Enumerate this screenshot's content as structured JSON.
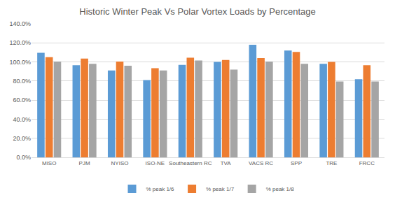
{
  "chart_data": {
    "type": "bar",
    "title": "Historic Winter Peak Vs Polar Vortex Loads by Percentage",
    "categories": [
      "MISO",
      "PJM",
      "NYISO",
      "ISO-NE",
      "Southeastern RC",
      "TVA",
      "VACS RC",
      "SPP",
      "TRE",
      "FRCC"
    ],
    "series": [
      {
        "name": "% peak 1/6",
        "color": "#5b9bd5",
        "values": [
          109.5,
          96.5,
          91,
          81,
          97,
          100,
          118,
          112,
          98,
          82
        ]
      },
      {
        "name": "% peak 1/7",
        "color": "#ed7d31",
        "values": [
          105,
          103.5,
          100.5,
          93.5,
          104.5,
          102,
          104,
          110.5,
          100,
          96.5
        ]
      },
      {
        "name": "% peak 1/8",
        "color": "#a5a5a5",
        "values": [
          100.5,
          98,
          96,
          91,
          101.5,
          92,
          100.5,
          98,
          79.5,
          79.5
        ]
      }
    ],
    "ylim": [
      0,
      140
    ],
    "yticks": [
      {
        "value": 0,
        "label": "0.0%"
      },
      {
        "value": 20,
        "label": "20.0%"
      },
      {
        "value": 40,
        "label": "40.0%"
      },
      {
        "value": 60,
        "label": "60.0%"
      },
      {
        "value": 80,
        "label": "80.0%"
      },
      {
        "value": 100,
        "label": "100.0%"
      },
      {
        "value": 120,
        "label": "120.0%"
      },
      {
        "value": 140,
        "label": "140.0%"
      }
    ],
    "grid": true,
    "legend": "bottom"
  }
}
